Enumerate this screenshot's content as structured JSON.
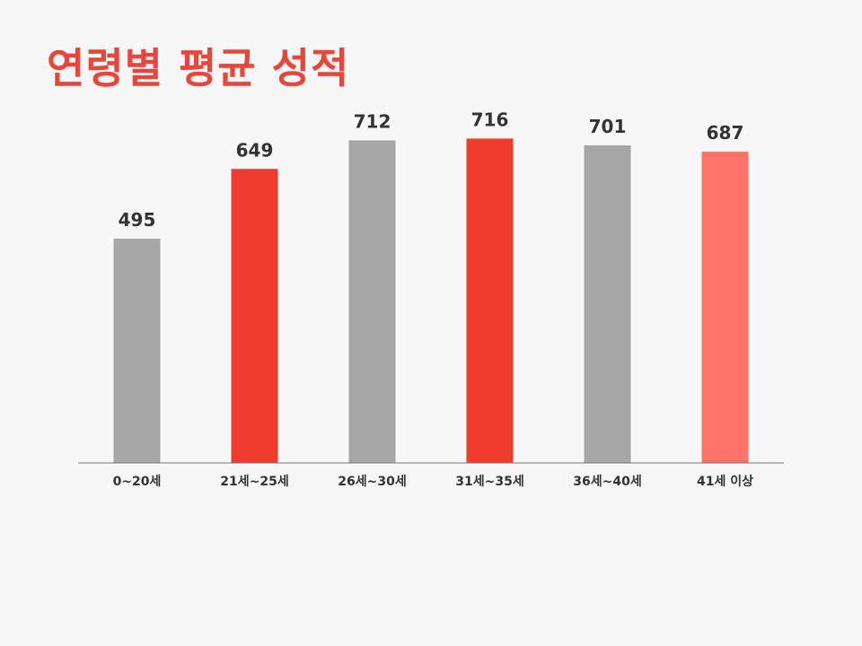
{
  "slide": {
    "title": "연령별 평균 성적",
    "title_color": "#e8463a"
  },
  "chart_data": {
    "type": "bar",
    "title": "연령별 평균 성적",
    "categories": [
      "0~20세",
      "21세~25세",
      "26세~30세",
      "31세~35세",
      "36세~40세",
      "41세 이상"
    ],
    "values": [
      495,
      649,
      712,
      716,
      701,
      687
    ],
    "colors": [
      "#a6a6a6",
      "#f03c2e",
      "#a6a6a6",
      "#f03c2e",
      "#a6a6a6",
      "#ff7268"
    ],
    "data_labels": true,
    "ylim": [
      0,
      800
    ],
    "grid": false,
    "legend": "none",
    "axis_color": "#777777"
  }
}
